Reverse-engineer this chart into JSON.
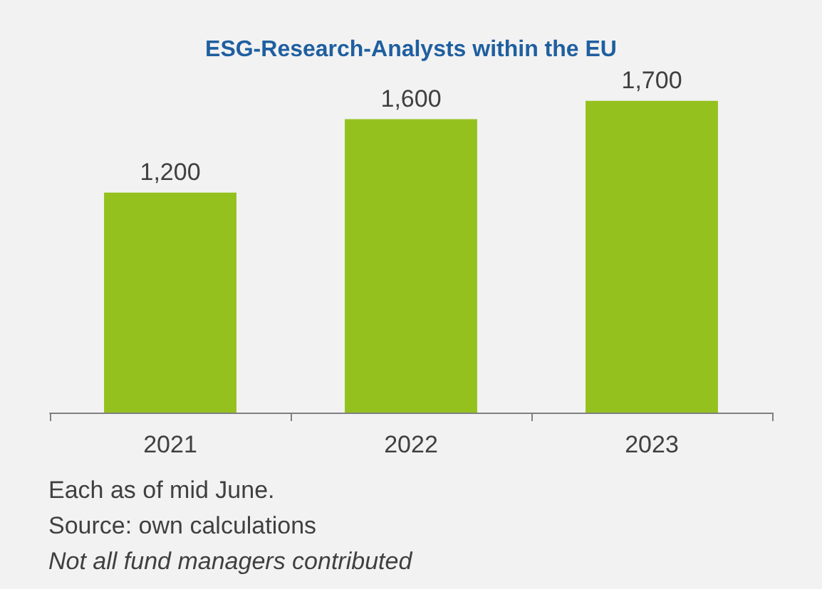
{
  "chart_data": {
    "type": "bar",
    "title": "ESG-Research-Analysts within the EU",
    "categories": [
      "2021",
      "2022",
      "2023"
    ],
    "values": [
      1200,
      1600,
      1700
    ],
    "value_labels": [
      "1,200",
      "1,600",
      "1,700"
    ],
    "color": "#95c11f",
    "annotations": [
      "Each as of mid June.",
      "Source: own calculations",
      "Not all fund managers contributed"
    ]
  }
}
